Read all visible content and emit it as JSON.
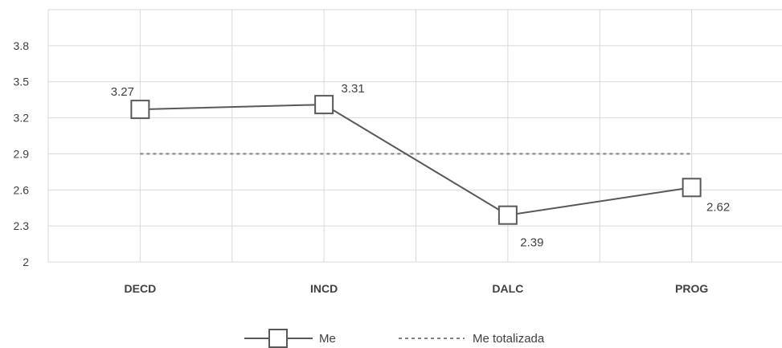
{
  "chart_data": {
    "type": "line",
    "title": "",
    "xlabel": "",
    "ylabel": "",
    "categories": [
      "DECD",
      "INCD",
      "DALC",
      "PROG"
    ],
    "ylim": [
      2,
      4.1
    ],
    "yticks": [
      "2",
      "2.3",
      "2.6",
      "2.9",
      "3.2",
      "3.5",
      "3.8"
    ],
    "grid": true,
    "legend_position": "bottom",
    "series": [
      {
        "name": "Me",
        "values": [
          3.27,
          3.31,
          2.39,
          2.62
        ],
        "labels": [
          "3.27",
          "3.31",
          "2.39",
          "2.62"
        ],
        "color": "#595959",
        "marker": "square"
      },
      {
        "name": "Me totalizada",
        "values": [
          2.9,
          2.9,
          2.9,
          2.9
        ],
        "color": "#808080",
        "style": "dashed"
      }
    ]
  }
}
